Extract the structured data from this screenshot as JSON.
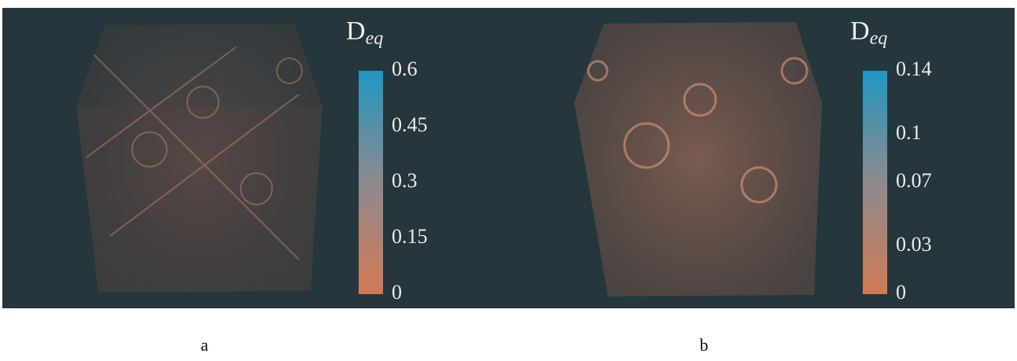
{
  "panels": [
    {
      "caption": "a",
      "colorbar": {
        "symbol": "D",
        "subscript": "eq",
        "ticks": [
          0.6,
          0.45,
          0.3,
          0.15,
          0
        ]
      }
    },
    {
      "caption": "b",
      "colorbar": {
        "symbol": "D",
        "subscript": "eq",
        "ticks": [
          0.14,
          0.1,
          0.07,
          0.03,
          0
        ]
      }
    }
  ]
}
